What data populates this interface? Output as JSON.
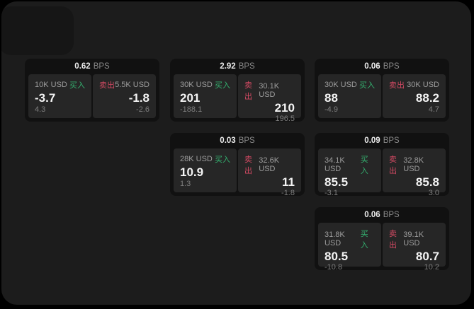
{
  "labels": {
    "bps_unit": "BPS",
    "buy": "买入",
    "sell": "卖出"
  },
  "theme": {
    "screen_bg": "#1c1c1c",
    "corner_bg": "#161616",
    "card_bg": "#111111",
    "panel_bg": "#262626",
    "buy_color": "#34b06f",
    "sell_color": "#d34a63"
  },
  "cards": [
    {
      "bps": "0.62",
      "buy": {
        "amount": "10K USD",
        "price": "-3.7",
        "delta": "4.3"
      },
      "sell": {
        "amount": "5.5K USD",
        "price": "-1.8",
        "delta": "-2.6"
      }
    },
    {
      "bps": "2.92",
      "buy": {
        "amount": "30K USD",
        "price": "201",
        "delta": "-188.1"
      },
      "sell": {
        "amount": "30.1K USD",
        "price": "210",
        "delta": "196.5"
      }
    },
    {
      "bps": "0.06",
      "buy": {
        "amount": "30K USD",
        "price": "88",
        "delta": "-4.9"
      },
      "sell": {
        "amount": "30K USD",
        "price": "88.2",
        "delta": "4.7"
      }
    },
    {
      "bps": "0.03",
      "buy": {
        "amount": "28K USD",
        "price": "10.9",
        "delta": "1.3"
      },
      "sell": {
        "amount": "32.6K USD",
        "price": "11",
        "delta": "-1.8"
      }
    },
    {
      "bps": "0.09",
      "buy": {
        "amount": "34.1K USD",
        "price": "85.5",
        "delta": "-3.1"
      },
      "sell": {
        "amount": "32.8K USD",
        "price": "85.8",
        "delta": "3.0"
      }
    },
    {
      "bps": "0.06",
      "buy": {
        "amount": "31.8K USD",
        "price": "80.5",
        "delta": "-10.8"
      },
      "sell": {
        "amount": "39.1K USD",
        "price": "80.7",
        "delta": "10.2"
      }
    }
  ]
}
